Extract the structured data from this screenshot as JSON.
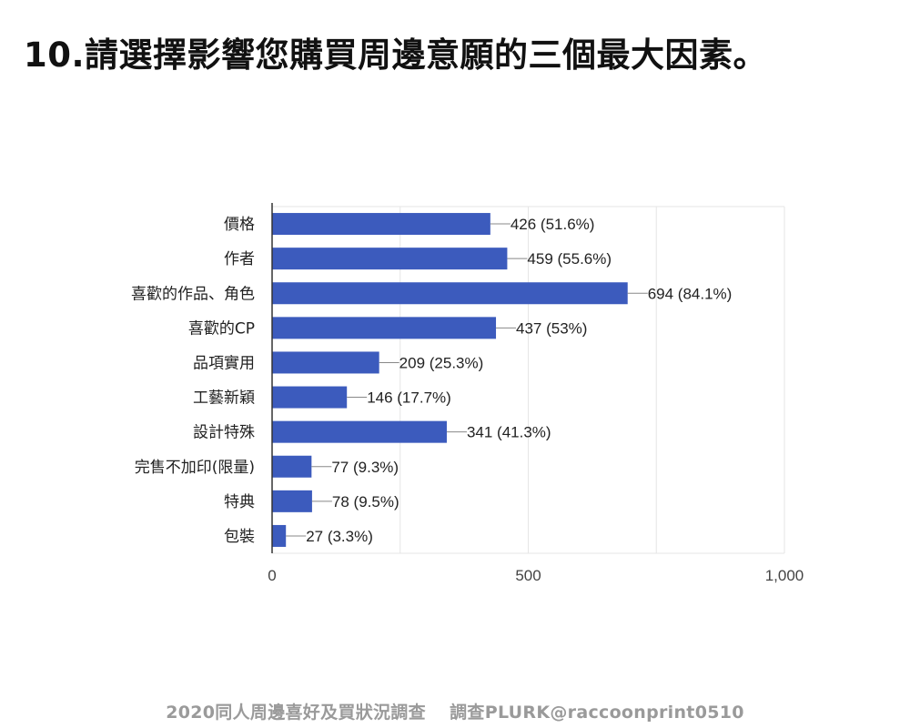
{
  "title": "10.請選擇影響您購買周邊意願的三個最大因素。",
  "footer": "2020同人周邊喜好及買狀況調查　 調查PLURK@raccoonprint0510",
  "chart_data": {
    "type": "bar",
    "orientation": "horizontal",
    "categories": [
      "價格",
      "作者",
      "喜歡的作品、角色",
      "喜歡的CP",
      "品項實用",
      "工藝新穎",
      "設計特殊",
      "完售不加印(限量)",
      "特典",
      "包裝"
    ],
    "values": [
      426,
      459,
      694,
      437,
      209,
      146,
      341,
      77,
      78,
      27
    ],
    "data_labels": [
      "426 (51.6%)",
      "459 (55.6%)",
      "694 (84.1%)",
      "437 (53%)",
      "209 (25.3%)",
      "146 (17.7%)",
      "341 (41.3%)",
      "77 (9.3%)",
      "78 (9.5%)",
      "27 (3.3%)"
    ],
    "xlim": [
      0,
      1000
    ],
    "x_ticks": [
      0,
      500,
      1000
    ],
    "x_tick_labels": [
      "0",
      "500",
      "1,000"
    ],
    "grid": true,
    "bar_color": "#3c5bbd"
  }
}
